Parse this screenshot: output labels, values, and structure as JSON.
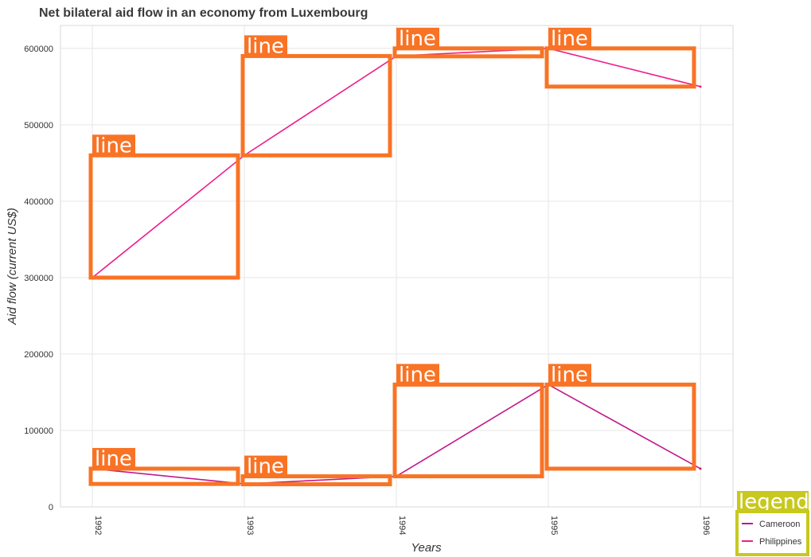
{
  "title": "Net bilateral aid flow in an economy from Luxembourg",
  "colors": {
    "cameroon": "#c2188b",
    "philippines": "#ec1f8e",
    "annotation": "#f97325",
    "legend_box": "#c8c81e",
    "grid": "#e6e6e6"
  },
  "annotation_label": "line",
  "chart_data": {
    "type": "line",
    "title": "Net bilateral aid flow in an economy from Luxembourg",
    "xlabel": "Years",
    "ylabel": "Aid flow (current US$)",
    "x": [
      "1992",
      "1993",
      "1994",
      "1995",
      "1996"
    ],
    "ylim": [
      0,
      630000
    ],
    "yticks": [
      0,
      100000,
      200000,
      300000,
      400000,
      500000,
      600000
    ],
    "ytick_labels": [
      "0",
      "100000",
      "200000",
      "300000",
      "400000",
      "500000",
      "600000"
    ],
    "grid": true,
    "legend_position": "bottom-right",
    "legend_title": "legend",
    "series": [
      {
        "name": "Cameroon",
        "values": [
          50000,
          30000,
          40000,
          160000,
          50000
        ]
      },
      {
        "name": "Philippines",
        "values": [
          300000,
          460000,
          590000,
          600000,
          550000
        ]
      }
    ]
  }
}
